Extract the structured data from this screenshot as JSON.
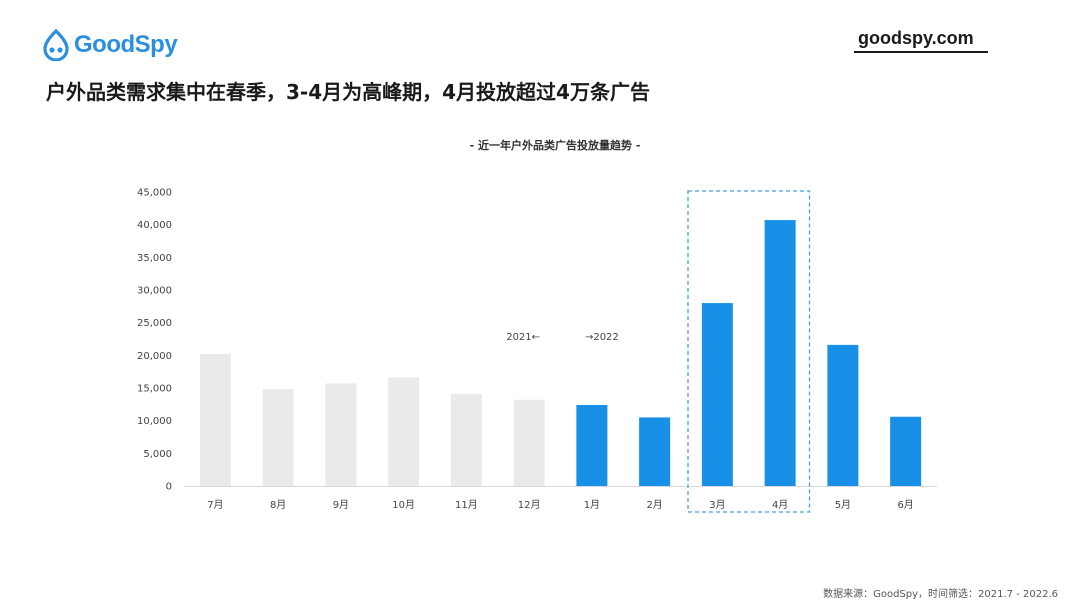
{
  "header": {
    "logo_text": "GoodSpy",
    "site": "goodspy.com",
    "headline": "户外品类需求集中在春季，3-4月为高峰期，4月投放超过4万条广告"
  },
  "footer": {
    "source": "数据来源：GoodSpy，时间筛选：2021.7 - 2022.6"
  },
  "colors": {
    "brand": "#2b8fe0",
    "bar_2021": "#eaeaea",
    "bar_2022": "#1890e8",
    "highlight_border": "#4a9de0"
  },
  "chart_data": {
    "type": "bar",
    "title": "- 近一年户外品类广告投放量趋势 -",
    "categories": [
      "7月",
      "8月",
      "9月",
      "10月",
      "11月",
      "12月",
      "1月",
      "2月",
      "3月",
      "4月",
      "5月",
      "6月"
    ],
    "values": [
      20200,
      14800,
      15700,
      16600,
      14100,
      13200,
      12400,
      10500,
      28000,
      40700,
      21600,
      10600
    ],
    "year_groups": [
      {
        "label": "2021←",
        "start": 0,
        "end": 5,
        "color": "#eaeaea"
      },
      {
        "label": "→2022",
        "start": 6,
        "end": 11,
        "color": "#1890e8"
      }
    ],
    "highlight": {
      "start": 8,
      "end": 9
    },
    "yticks": [
      "0",
      "5,000",
      "10,000",
      "15,000",
      "20,000",
      "25,000",
      "30,000",
      "35,000",
      "40,000",
      "45,000"
    ],
    "ylim": [
      0,
      45000
    ],
    "grid": false
  }
}
